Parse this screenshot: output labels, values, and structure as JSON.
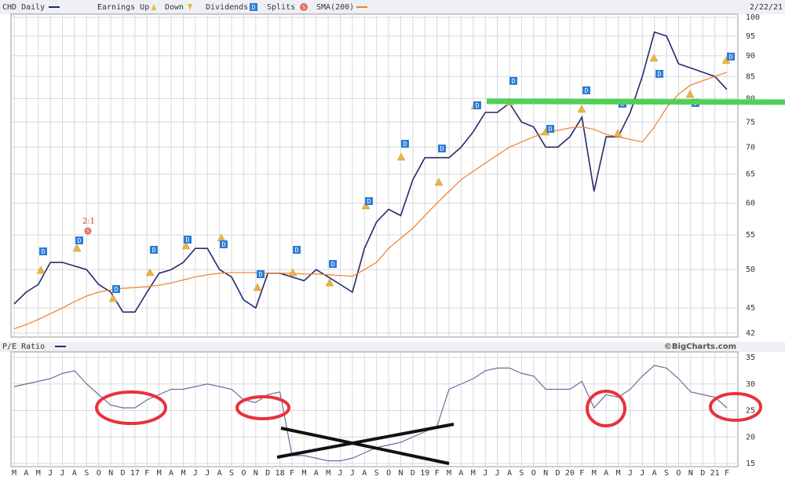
{
  "chart_data": [
    {
      "type": "line",
      "title": "CHD Daily",
      "date": "2/22/21",
      "yscale": "log",
      "grid": true,
      "legend": [
        {
          "label": "Earnings Up"
        },
        {
          "label": "Down"
        },
        {
          "label": "Dividends",
          "icon": "D"
        },
        {
          "label": "Splits",
          "icon": "S"
        }
      ],
      "split_annotation": "2:1",
      "ylim": [
        42,
        100
      ],
      "yticks": [
        42,
        45,
        50,
        55,
        60,
        65,
        70,
        75,
        80,
        85,
        90,
        95,
        100
      ],
      "series": [
        {
          "name": "CHD Daily",
          "color": "#262a6e",
          "values": [
            45.5,
            47,
            48,
            51,
            51,
            50.5,
            50,
            48,
            47,
            44.5,
            44.5,
            47,
            49.5,
            50,
            51,
            53,
            53,
            50,
            49,
            46,
            45,
            49.5,
            49.5,
            49,
            48.5,
            50,
            49,
            48,
            47,
            53,
            57,
            59,
            58,
            64,
            68,
            68,
            68,
            70,
            73,
            77,
            77,
            79,
            75,
            74,
            70,
            70,
            72,
            76,
            62,
            72,
            72,
            77,
            85,
            96,
            95,
            88,
            87,
            86,
            85,
            82
          ]
        },
        {
          "name": "SMA(200)",
          "color": "#f07f2a",
          "values": [
            42.5,
            43,
            43.6,
            44.3,
            45,
            45.8,
            46.5,
            47,
            47.3,
            47.5,
            47.6,
            47.7,
            47.9,
            48.2,
            48.6,
            49,
            49.3,
            49.5,
            49.6,
            49.6,
            49.6,
            49.5,
            49.5,
            49.5,
            49.4,
            49.4,
            49.3,
            49.2,
            49.1,
            50,
            51,
            53,
            54.5,
            56,
            58,
            60,
            62,
            64,
            65.5,
            67,
            68.5,
            70,
            71,
            72,
            72.8,
            73.3,
            73.8,
            74,
            73.5,
            72.5,
            72,
            71.5,
            71,
            74,
            78,
            81,
            83,
            84,
            85,
            86
          ]
        }
      ]
    },
    {
      "type": "line",
      "title": "P/E Ratio",
      "credit": "©BigCharts.com",
      "grid": true,
      "categories": [
        "M",
        "A",
        "M",
        "J",
        "J",
        "A",
        "S",
        "O",
        "N",
        "D",
        "17",
        "F",
        "M",
        "A",
        "M",
        "J",
        "J",
        "A",
        "S",
        "O",
        "N",
        "D",
        "18",
        "F",
        "M",
        "A",
        "M",
        "J",
        "J",
        "A",
        "S",
        "O",
        "N",
        "D",
        "19",
        "F",
        "M",
        "A",
        "M",
        "J",
        "J",
        "A",
        "S",
        "O",
        "N",
        "D",
        "20",
        "F",
        "M",
        "A",
        "M",
        "J",
        "J",
        "A",
        "S",
        "O",
        "N",
        "D",
        "21",
        "F"
      ],
      "ylim": [
        15,
        35
      ],
      "yticks": [
        15,
        20,
        25,
        30,
        35
      ],
      "series": [
        {
          "name": "P/E Ratio",
          "color": "#6a6e9a",
          "values": [
            29.5,
            30,
            30.5,
            31,
            32,
            32.5,
            30,
            28,
            26,
            25.5,
            25.5,
            27,
            28,
            29,
            29,
            29.5,
            30,
            29.5,
            29,
            27,
            26.5,
            28,
            28.5,
            16.5,
            16.5,
            16,
            15.5,
            15.5,
            16,
            17,
            18,
            18.5,
            19,
            20,
            21,
            22,
            29,
            30,
            31,
            32.5,
            33,
            33,
            32,
            31.5,
            29,
            29,
            29,
            30.5,
            25.5,
            28,
            27.5,
            29,
            31.5,
            33.5,
            33,
            31,
            28.5,
            28,
            27.5,
            25.5
          ]
        }
      ]
    }
  ]
}
